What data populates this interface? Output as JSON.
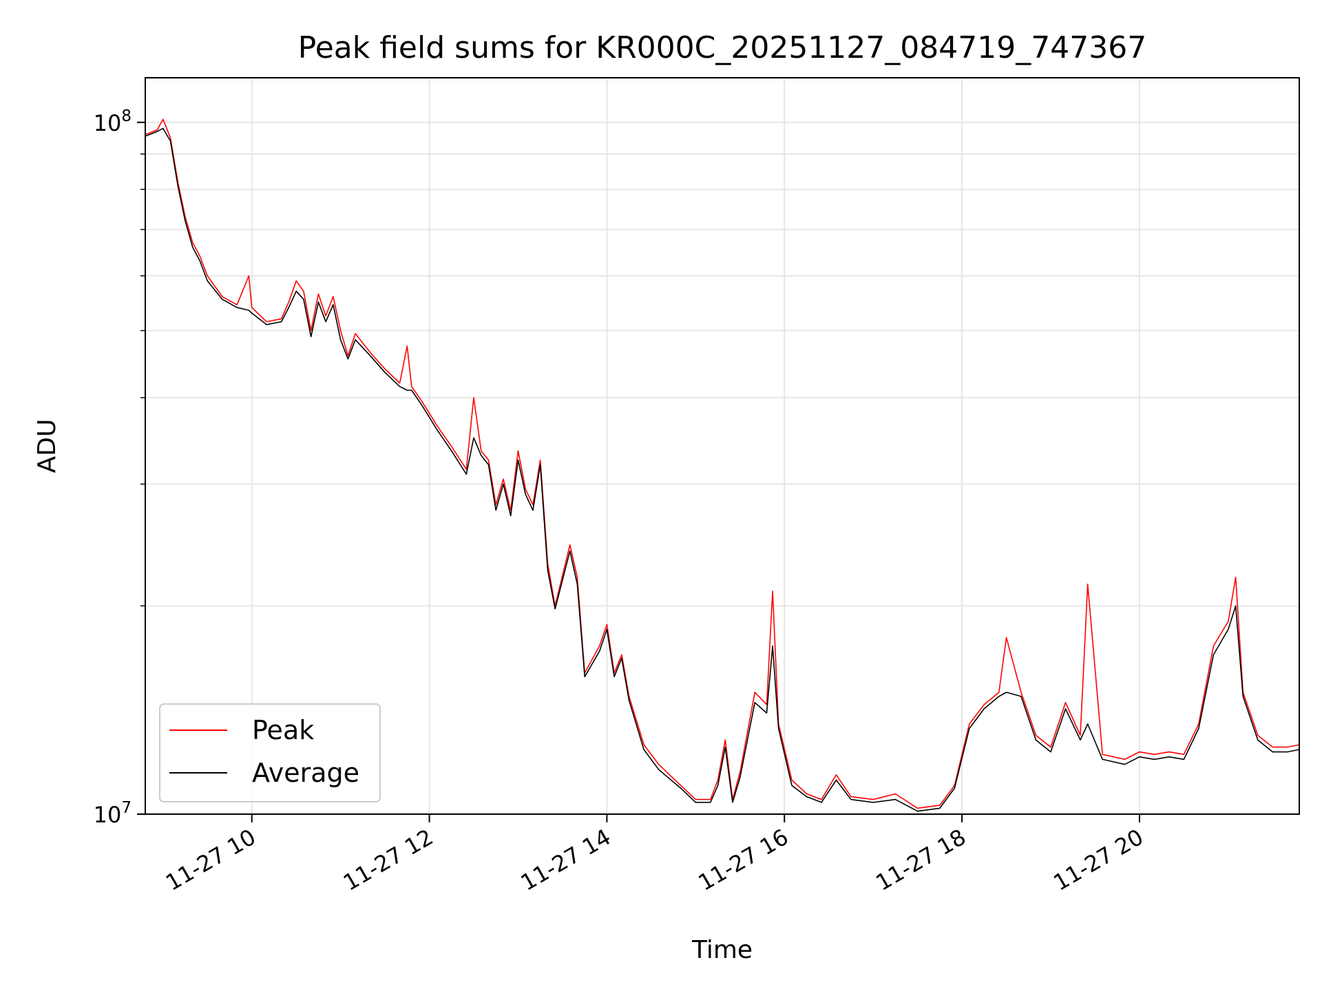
{
  "chart_data": {
    "type": "line",
    "title": "Peak field sums for KR000C_20251127_084719_747367",
    "xlabel": "Time",
    "ylabel": "ADU",
    "yscale": "log",
    "xlim": [
      "2025-11-27 08:48",
      "2025-11-27 21:48"
    ],
    "ylim": [
      10000000,
      116000000
    ],
    "x_ticks": [
      {
        "x": "2025-11-27 10:00",
        "label": "11-27 10"
      },
      {
        "x": "2025-11-27 12:00",
        "label": "11-27 12"
      },
      {
        "x": "2025-11-27 14:00",
        "label": "11-27 14"
      },
      {
        "x": "2025-11-27 16:00",
        "label": "11-27 16"
      },
      {
        "x": "2025-11-27 18:00",
        "label": "11-27 18"
      },
      {
        "x": "2025-11-27 20:00",
        "label": "11-27 20"
      }
    ],
    "y_ticks": [
      {
        "y": 10000000,
        "base": "10",
        "exp": "7"
      },
      {
        "y": 100000000,
        "base": "10",
        "exp": "8"
      }
    ],
    "y_minor_ticks": [
      20000000,
      30000000,
      40000000,
      50000000,
      60000000,
      70000000,
      80000000,
      90000000
    ],
    "grid": true,
    "legend_position": "lower-left",
    "series": [
      {
        "name": "Peak",
        "color": "#ff0000",
        "points": [
          [
            "2025-11-27 08:48",
            96000000
          ],
          [
            "2025-11-27 08:56",
            97500000
          ],
          [
            "2025-11-27 09:00",
            101000000
          ],
          [
            "2025-11-27 09:05",
            95000000
          ],
          [
            "2025-11-27 09:10",
            82000000
          ],
          [
            "2025-11-27 09:15",
            73000000
          ],
          [
            "2025-11-27 09:20",
            67000000
          ],
          [
            "2025-11-27 09:25",
            64000000
          ],
          [
            "2025-11-27 09:30",
            60000000
          ],
          [
            "2025-11-27 09:40",
            56000000
          ],
          [
            "2025-11-27 09:50",
            54500000
          ],
          [
            "2025-11-27 09:58",
            60000000
          ],
          [
            "2025-11-27 10:00",
            54000000
          ],
          [
            "2025-11-27 10:10",
            51500000
          ],
          [
            "2025-11-27 10:20",
            52000000
          ],
          [
            "2025-11-27 10:25",
            55000000
          ],
          [
            "2025-11-27 10:30",
            59000000
          ],
          [
            "2025-11-27 10:35",
            57000000
          ],
          [
            "2025-11-27 10:40",
            50000000
          ],
          [
            "2025-11-27 10:45",
            56500000
          ],
          [
            "2025-11-27 10:50",
            52500000
          ],
          [
            "2025-11-27 10:55",
            56000000
          ],
          [
            "2025-11-27 11:00",
            50000000
          ],
          [
            "2025-11-27 11:05",
            46000000
          ],
          [
            "2025-11-27 11:10",
            49500000
          ],
          [
            "2025-11-27 11:20",
            46500000
          ],
          [
            "2025-11-27 11:30",
            44000000
          ],
          [
            "2025-11-27 11:40",
            42000000
          ],
          [
            "2025-11-27 11:45",
            47500000
          ],
          [
            "2025-11-27 11:48",
            41500000
          ],
          [
            "2025-11-27 11:55",
            39500000
          ],
          [
            "2025-11-27 12:05",
            36500000
          ],
          [
            "2025-11-27 12:15",
            34000000
          ],
          [
            "2025-11-27 12:25",
            31500000
          ],
          [
            "2025-11-27 12:30",
            40000000
          ],
          [
            "2025-11-27 12:35",
            33500000
          ],
          [
            "2025-11-27 12:40",
            32500000
          ],
          [
            "2025-11-27 12:45",
            28000000
          ],
          [
            "2025-11-27 12:50",
            30500000
          ],
          [
            "2025-11-27 12:55",
            27500000
          ],
          [
            "2025-11-27 13:00",
            33500000
          ],
          [
            "2025-11-27 13:05",
            29500000
          ],
          [
            "2025-11-27 13:10",
            28000000
          ],
          [
            "2025-11-27 13:15",
            32500000
          ],
          [
            "2025-11-27 13:20",
            23000000
          ],
          [
            "2025-11-27 13:25",
            20000000
          ],
          [
            "2025-11-27 13:35",
            24500000
          ],
          [
            "2025-11-27 13:40",
            22000000
          ],
          [
            "2025-11-27 13:45",
            16000000
          ],
          [
            "2025-11-27 13:55",
            17500000
          ],
          [
            "2025-11-27 14:00",
            18800000
          ],
          [
            "2025-11-27 14:05",
            16000000
          ],
          [
            "2025-11-27 14:10",
            17000000
          ],
          [
            "2025-11-27 14:15",
            14800000
          ],
          [
            "2025-11-27 14:25",
            12600000
          ],
          [
            "2025-11-27 14:35",
            11800000
          ],
          [
            "2025-11-27 14:50",
            11000000
          ],
          [
            "2025-11-27 15:00",
            10500000
          ],
          [
            "2025-11-27 15:10",
            10500000
          ],
          [
            "2025-11-27 15:15",
            11200000
          ],
          [
            "2025-11-27 15:20",
            12800000
          ],
          [
            "2025-11-27 15:25",
            10500000
          ],
          [
            "2025-11-27 15:30",
            11500000
          ],
          [
            "2025-11-27 15:40",
            15000000
          ],
          [
            "2025-11-27 15:48",
            14400000
          ],
          [
            "2025-11-27 15:52",
            21000000
          ],
          [
            "2025-11-27 15:56",
            13500000
          ],
          [
            "2025-11-27 16:05",
            11200000
          ],
          [
            "2025-11-27 16:15",
            10700000
          ],
          [
            "2025-11-27 16:25",
            10500000
          ],
          [
            "2025-11-27 16:35",
            11400000
          ],
          [
            "2025-11-27 16:45",
            10600000
          ],
          [
            "2025-11-27 17:00",
            10500000
          ],
          [
            "2025-11-27 17:15",
            10700000
          ],
          [
            "2025-11-27 17:30",
            10200000
          ],
          [
            "2025-11-27 17:45",
            10300000
          ],
          [
            "2025-11-27 17:55",
            11000000
          ],
          [
            "2025-11-27 18:05",
            13500000
          ],
          [
            "2025-11-27 18:15",
            14400000
          ],
          [
            "2025-11-27 18:25",
            15000000
          ],
          [
            "2025-11-27 18:30",
            18000000
          ],
          [
            "2025-11-27 18:40",
            15000000
          ],
          [
            "2025-11-27 18:50",
            13000000
          ],
          [
            "2025-11-27 19:00",
            12500000
          ],
          [
            "2025-11-27 19:10",
            14500000
          ],
          [
            "2025-11-27 19:20",
            13000000
          ],
          [
            "2025-11-27 19:25",
            21500000
          ],
          [
            "2025-11-27 19:35",
            12200000
          ],
          [
            "2025-11-27 19:50",
            12000000
          ],
          [
            "2025-11-27 20:00",
            12300000
          ],
          [
            "2025-11-27 20:10",
            12200000
          ],
          [
            "2025-11-27 20:20",
            12300000
          ],
          [
            "2025-11-27 20:30",
            12200000
          ],
          [
            "2025-11-27 20:40",
            13500000
          ],
          [
            "2025-11-27 20:50",
            17500000
          ],
          [
            "2025-11-27 21:00",
            19000000
          ],
          [
            "2025-11-27 21:05",
            22000000
          ],
          [
            "2025-11-27 21:10",
            15000000
          ],
          [
            "2025-11-27 21:20",
            13000000
          ],
          [
            "2025-11-27 21:30",
            12500000
          ],
          [
            "2025-11-27 21:40",
            12500000
          ],
          [
            "2025-11-27 21:48",
            12600000
          ]
        ]
      },
      {
        "name": "Average",
        "color": "#000000",
        "points": [
          [
            "2025-11-27 08:48",
            95500000
          ],
          [
            "2025-11-27 08:56",
            97000000
          ],
          [
            "2025-11-27 09:00",
            98000000
          ],
          [
            "2025-11-27 09:05",
            94000000
          ],
          [
            "2025-11-27 09:10",
            81000000
          ],
          [
            "2025-11-27 09:15",
            72000000
          ],
          [
            "2025-11-27 09:20",
            66000000
          ],
          [
            "2025-11-27 09:25",
            63000000
          ],
          [
            "2025-11-27 09:30",
            59000000
          ],
          [
            "2025-11-27 09:40",
            55500000
          ],
          [
            "2025-11-27 09:50",
            54000000
          ],
          [
            "2025-11-27 09:58",
            53500000
          ],
          [
            "2025-11-27 10:00",
            53000000
          ],
          [
            "2025-11-27 10:10",
            51000000
          ],
          [
            "2025-11-27 10:20",
            51500000
          ],
          [
            "2025-11-27 10:25",
            54000000
          ],
          [
            "2025-11-27 10:30",
            57000000
          ],
          [
            "2025-11-27 10:35",
            55500000
          ],
          [
            "2025-11-27 10:40",
            49000000
          ],
          [
            "2025-11-27 10:45",
            55000000
          ],
          [
            "2025-11-27 10:50",
            51500000
          ],
          [
            "2025-11-27 10:55",
            54500000
          ],
          [
            "2025-11-27 11:00",
            48500000
          ],
          [
            "2025-11-27 11:05",
            45500000
          ],
          [
            "2025-11-27 11:10",
            48500000
          ],
          [
            "2025-11-27 11:20",
            46000000
          ],
          [
            "2025-11-27 11:30",
            43500000
          ],
          [
            "2025-11-27 11:40",
            41500000
          ],
          [
            "2025-11-27 11:45",
            41000000
          ],
          [
            "2025-11-27 11:48",
            41000000
          ],
          [
            "2025-11-27 11:55",
            39000000
          ],
          [
            "2025-11-27 12:05",
            36000000
          ],
          [
            "2025-11-27 12:15",
            33500000
          ],
          [
            "2025-11-27 12:25",
            31000000
          ],
          [
            "2025-11-27 12:30",
            35000000
          ],
          [
            "2025-11-27 12:35",
            33000000
          ],
          [
            "2025-11-27 12:40",
            32000000
          ],
          [
            "2025-11-27 12:45",
            27500000
          ],
          [
            "2025-11-27 12:50",
            30000000
          ],
          [
            "2025-11-27 12:55",
            27000000
          ],
          [
            "2025-11-27 13:00",
            32500000
          ],
          [
            "2025-11-27 13:05",
            29000000
          ],
          [
            "2025-11-27 13:10",
            27500000
          ],
          [
            "2025-11-27 13:15",
            32000000
          ],
          [
            "2025-11-27 13:20",
            22500000
          ],
          [
            "2025-11-27 13:25",
            19800000
          ],
          [
            "2025-11-27 13:35",
            24000000
          ],
          [
            "2025-11-27 13:40",
            21500000
          ],
          [
            "2025-11-27 13:45",
            15800000
          ],
          [
            "2025-11-27 13:55",
            17200000
          ],
          [
            "2025-11-27 14:00",
            18500000
          ],
          [
            "2025-11-27 14:05",
            15800000
          ],
          [
            "2025-11-27 14:10",
            16800000
          ],
          [
            "2025-11-27 14:15",
            14600000
          ],
          [
            "2025-11-27 14:25",
            12400000
          ],
          [
            "2025-11-27 14:35",
            11600000
          ],
          [
            "2025-11-27 14:50",
            10900000
          ],
          [
            "2025-11-27 15:00",
            10400000
          ],
          [
            "2025-11-27 15:10",
            10400000
          ],
          [
            "2025-11-27 15:15",
            11000000
          ],
          [
            "2025-11-27 15:20",
            12500000
          ],
          [
            "2025-11-27 15:25",
            10400000
          ],
          [
            "2025-11-27 15:30",
            11300000
          ],
          [
            "2025-11-27 15:40",
            14500000
          ],
          [
            "2025-11-27 15:48",
            14000000
          ],
          [
            "2025-11-27 15:52",
            17500000
          ],
          [
            "2025-11-27 15:56",
            13300000
          ],
          [
            "2025-11-27 16:05",
            11000000
          ],
          [
            "2025-11-27 16:15",
            10600000
          ],
          [
            "2025-11-27 16:25",
            10400000
          ],
          [
            "2025-11-27 16:35",
            11200000
          ],
          [
            "2025-11-27 16:45",
            10500000
          ],
          [
            "2025-11-27 17:00",
            10400000
          ],
          [
            "2025-11-27 17:15",
            10500000
          ],
          [
            "2025-11-27 17:30",
            10100000
          ],
          [
            "2025-11-27 17:45",
            10200000
          ],
          [
            "2025-11-27 17:55",
            10900000
          ],
          [
            "2025-11-27 18:05",
            13300000
          ],
          [
            "2025-11-27 18:15",
            14200000
          ],
          [
            "2025-11-27 18:25",
            14800000
          ],
          [
            "2025-11-27 18:30",
            15000000
          ],
          [
            "2025-11-27 18:40",
            14800000
          ],
          [
            "2025-11-27 18:50",
            12800000
          ],
          [
            "2025-11-27 19:00",
            12300000
          ],
          [
            "2025-11-27 19:10",
            14200000
          ],
          [
            "2025-11-27 19:20",
            12800000
          ],
          [
            "2025-11-27 19:25",
            13500000
          ],
          [
            "2025-11-27 19:35",
            12000000
          ],
          [
            "2025-11-27 19:50",
            11800000
          ],
          [
            "2025-11-27 20:00",
            12100000
          ],
          [
            "2025-11-27 20:10",
            12000000
          ],
          [
            "2025-11-27 20:20",
            12100000
          ],
          [
            "2025-11-27 20:30",
            12000000
          ],
          [
            "2025-11-27 20:40",
            13300000
          ],
          [
            "2025-11-27 20:50",
            17000000
          ],
          [
            "2025-11-27 21:00",
            18500000
          ],
          [
            "2025-11-27 21:05",
            20000000
          ],
          [
            "2025-11-27 21:10",
            14800000
          ],
          [
            "2025-11-27 21:20",
            12800000
          ],
          [
            "2025-11-27 21:30",
            12300000
          ],
          [
            "2025-11-27 21:40",
            12300000
          ],
          [
            "2025-11-27 21:48",
            12400000
          ]
        ]
      }
    ]
  }
}
